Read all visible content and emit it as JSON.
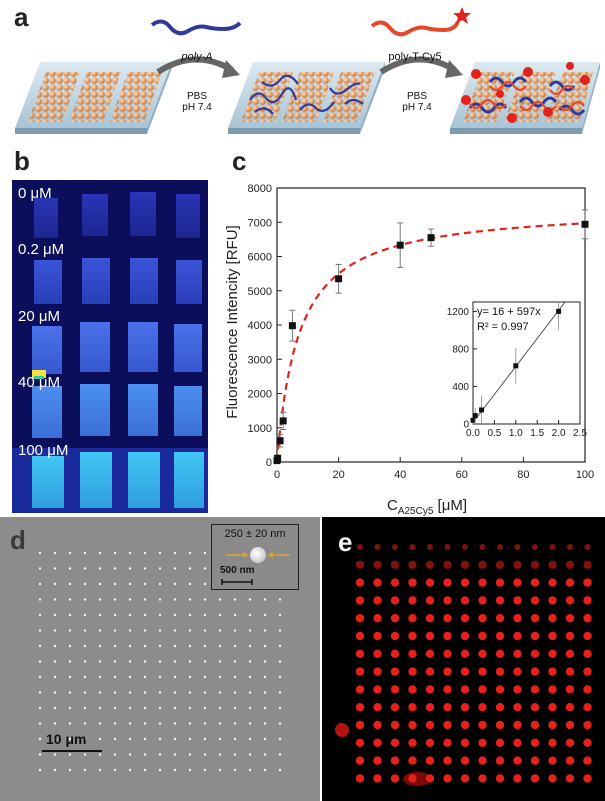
{
  "panel_labels": {
    "a": "a",
    "b": "b",
    "c": "c",
    "d": "d",
    "e": "e"
  },
  "panel_a": {
    "step1_label": "poly-A",
    "step2_label": "poly-T-Cy5",
    "buffer_line1": "PBS",
    "buffer_line2": "pH 7.4",
    "colors": {
      "slab": "#b9d0dd",
      "bead": "#e7a06a",
      "strand_a": "#2e3b9c",
      "strand_t": "#e3492b"
    }
  },
  "panel_b": {
    "rows": [
      "0 μM",
      "0.2  μM",
      "20 μM",
      "40 μM",
      "100 μM"
    ],
    "colors": {
      "background": "#0b0e5a"
    }
  },
  "chart_data": {
    "type": "scatter",
    "ylabel": "Fluorescence Intencity [RFU]",
    "xlabel": "C",
    "xlabel_sub": "A25Cy5",
    "xlabel_unit": " [μM]",
    "xlim": [
      0,
      100
    ],
    "ylim": [
      0,
      8000
    ],
    "xticks": [
      0,
      20,
      40,
      60,
      80,
      100
    ],
    "yticks": [
      0,
      1000,
      2000,
      3000,
      4000,
      5000,
      6000,
      7000,
      8000
    ],
    "series": [
      {
        "points": [
          {
            "x": 0.0,
            "y": 40,
            "err": 60
          },
          {
            "x": 0.2,
            "y": 110,
            "err": 80
          },
          {
            "x": 1.0,
            "y": 620,
            "err": 180
          },
          {
            "x": 2.0,
            "y": 1200,
            "err": 250
          },
          {
            "x": 5.0,
            "y": 3980,
            "err": 450
          },
          {
            "x": 20,
            "y": 5350,
            "err": 420
          },
          {
            "x": 40,
            "y": 6330,
            "err": 650
          },
          {
            "x": 50,
            "y": 6550,
            "err": 250
          },
          {
            "x": 100,
            "y": 6940,
            "err": 420
          }
        ],
        "fit_color": "#e2231a"
      }
    ],
    "inset": {
      "equation": "y= 16 + 597x",
      "r2": "R² = 0.997",
      "xlim": [
        0,
        2.5
      ],
      "ylim": [
        0,
        1300
      ],
      "xticks": [
        0.0,
        0.5,
        1.0,
        1.5,
        2.0,
        2.5
      ],
      "xtick_labels": [
        "0.0",
        "0.5",
        "1.0",
        "1.5",
        "2.0",
        "2.5"
      ],
      "yticks": [
        0,
        400,
        800,
        1200
      ],
      "points": [
        {
          "x": 0.0,
          "y": 40,
          "err": 50
        },
        {
          "x": 0.05,
          "y": 90,
          "err": 80
        },
        {
          "x": 0.2,
          "y": 150,
          "err": 150
        },
        {
          "x": 1.0,
          "y": 620,
          "err": 190
        },
        {
          "x": 2.0,
          "y": 1200,
          "err": 200
        }
      ]
    }
  },
  "panel_d": {
    "inset_size": "250 ± 20 nm",
    "inset_scale": "500 nm",
    "scale_bar": "10 μm"
  }
}
